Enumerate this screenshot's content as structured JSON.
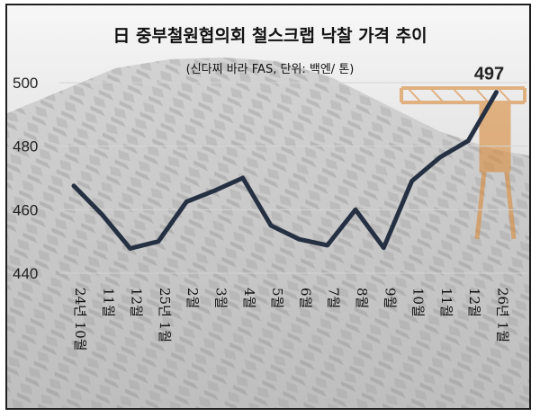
{
  "colors": {
    "line": "#253142",
    "grid": "#d4d4d4",
    "background_top": "#f7f7f7",
    "background_bottom": "#c3c3c3",
    "crane": "#d98a3a"
  },
  "chart_data": {
    "type": "line",
    "title": "日 중부철원협의회 철스크랩 낙찰 가격 추이",
    "subtitle": "(신다찌 바라 FAS, 단위: 백엔/ 톤)",
    "categories": [
      "24년 10월",
      "11월",
      "12월",
      "25년 1월",
      "2월",
      "3월",
      "4월",
      "5월",
      "6월",
      "7월",
      "8월",
      "9월",
      "10월",
      "11월",
      "12월",
      "26년 1월"
    ],
    "series": [
      {
        "values": [
          467.5,
          458.5,
          447.8,
          450,
          462.5,
          466,
          470,
          455,
          450.7,
          448.8,
          460,
          448,
          469,
          476.5,
          481.7,
          497
        ]
      }
    ],
    "ylim": [
      440,
      500
    ],
    "yticks": [
      440,
      460,
      480,
      500
    ],
    "data_labels": [
      {
        "index": 15,
        "text": "497"
      }
    ],
    "grid": true
  }
}
